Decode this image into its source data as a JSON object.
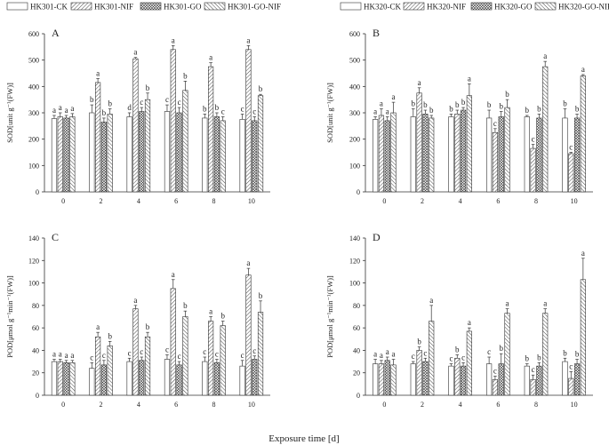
{
  "figure": {
    "shared_xlabel": "Exposure time [d]",
    "legends": [
      {
        "series": [
          "HK301-CK",
          "HK301-NIF",
          "HK301-GO",
          "HK301-GO-NIF"
        ]
      },
      {
        "series": [
          "HK320-CK",
          "HK320-NIF",
          "HK320-GO",
          "HK320-GO-NIF"
        ]
      }
    ]
  },
  "chart_data": [
    {
      "type": "bar",
      "panel_label": "A",
      "title": "",
      "xlabel": "",
      "ylabel": "SOD[unit g⁻¹(FW)]",
      "ylim": [
        0,
        600
      ],
      "yticks": [
        0,
        100,
        200,
        300,
        400,
        500,
        600
      ],
      "categories": [
        "0",
        "2",
        "4",
        "6",
        "8",
        "10"
      ],
      "series": [
        {
          "name": "HK301-CK",
          "values": [
            278,
            300,
            285,
            305,
            280,
            275
          ],
          "errors": [
            12,
            30,
            15,
            25,
            15,
            20
          ],
          "letters": [
            "a",
            "b",
            "d",
            "c",
            "b",
            "c"
          ]
        },
        {
          "name": "HK301-NIF",
          "values": [
            285,
            415,
            505,
            540,
            475,
            540
          ],
          "errors": [
            15,
            15,
            5,
            15,
            15,
            15
          ],
          "letters": [
            "a",
            "a",
            "a",
            "a",
            "a",
            "a"
          ]
        },
        {
          "name": "HK301-GO",
          "values": [
            280,
            265,
            305,
            300,
            285,
            270
          ],
          "errors": [
            10,
            15,
            15,
            20,
            15,
            15
          ],
          "letters": [
            "a",
            "b",
            "c",
            "c",
            "b",
            "c"
          ]
        },
        {
          "name": "HK301-GO-NIF",
          "values": [
            285,
            295,
            350,
            385,
            270,
            365
          ],
          "errors": [
            12,
            20,
            25,
            35,
            15,
            5
          ],
          "letters": [
            "a",
            "b",
            "b",
            "b",
            "c",
            "b"
          ]
        }
      ]
    },
    {
      "type": "bar",
      "panel_label": "B",
      "title": "",
      "xlabel": "",
      "ylabel": "SOD[unit g⁻¹(FW)]",
      "ylim": [
        0,
        600
      ],
      "yticks": [
        0,
        100,
        200,
        300,
        400,
        500,
        600
      ],
      "categories": [
        "0",
        "2",
        "4",
        "6",
        "8",
        "10"
      ],
      "series": [
        {
          "name": "HK320-CK",
          "values": [
            275,
            285,
            285,
            280,
            285,
            280
          ],
          "errors": [
            10,
            30,
            10,
            30,
            5,
            35
          ],
          "letters": [
            "a",
            "b",
            "b",
            "b",
            "b",
            "b"
          ]
        },
        {
          "name": "HK320-NIF",
          "values": [
            290,
            375,
            295,
            225,
            165,
            145
          ],
          "errors": [
            25,
            20,
            15,
            15,
            15,
            5
          ],
          "letters": [
            "a",
            "a",
            "b",
            "c",
            "c",
            "c"
          ]
        },
        {
          "name": "HK320-GO",
          "values": [
            270,
            295,
            310,
            285,
            280,
            280
          ],
          "errors": [
            15,
            15,
            10,
            20,
            15,
            15
          ],
          "letters": [
            "a",
            "b",
            "b",
            "b",
            "b",
            "b"
          ]
        },
        {
          "name": "HK320-GO-NIF",
          "values": [
            300,
            280,
            365,
            320,
            475,
            440
          ],
          "errors": [
            40,
            10,
            45,
            30,
            20,
            5
          ],
          "letters": [
            "a",
            "b",
            "a",
            "b",
            "a",
            "a"
          ]
        }
      ]
    },
    {
      "type": "bar",
      "panel_label": "C",
      "title": "",
      "xlabel": "",
      "ylabel": "POD[μmol g⁻¹min⁻¹(FW)]",
      "ylim": [
        0,
        140
      ],
      "yticks": [
        0,
        20,
        40,
        60,
        80,
        100,
        120,
        140
      ],
      "categories": [
        "0",
        "2",
        "4",
        "6",
        "8",
        "10"
      ],
      "series": [
        {
          "name": "HK301-CK",
          "values": [
            30,
            24,
            30,
            32,
            30,
            26
          ],
          "errors": [
            2,
            5,
            3,
            4,
            4,
            5
          ],
          "letters": [
            "a",
            "c",
            "c",
            "c",
            "c",
            "c"
          ]
        },
        {
          "name": "HK301-NIF",
          "values": [
            30,
            52,
            77,
            95,
            66,
            107
          ],
          "errors": [
            2,
            4,
            3,
            8,
            4,
            6
          ],
          "letters": [
            "a",
            "a",
            "a",
            "a",
            "a",
            "a"
          ]
        },
        {
          "name": "HK301-GO",
          "values": [
            29,
            27,
            31,
            27,
            29,
            32
          ],
          "errors": [
            2,
            4,
            3,
            3,
            3,
            3
          ],
          "letters": [
            "a",
            "c",
            "c",
            "c",
            "c",
            "c"
          ]
        },
        {
          "name": "HK301-GO-NIF",
          "values": [
            29,
            44,
            52,
            70,
            62,
            74
          ],
          "errors": [
            2,
            4,
            4,
            5,
            4,
            10
          ],
          "letters": [
            "a",
            "b",
            "b",
            "b",
            "b",
            "b"
          ]
        }
      ]
    },
    {
      "type": "bar",
      "panel_label": "D",
      "title": "",
      "xlabel": "",
      "ylabel": "POD[μmol g⁻¹min⁻¹(FW)]",
      "ylim": [
        0,
        140
      ],
      "yticks": [
        0,
        20,
        40,
        60,
        80,
        100,
        120,
        140
      ],
      "categories": [
        "0",
        "2",
        "4",
        "6",
        "8",
        "10"
      ],
      "series": [
        {
          "name": "HK320-CK",
          "values": [
            28,
            28,
            26,
            28,
            26,
            30
          ],
          "errors": [
            4,
            2,
            2,
            6,
            2,
            3
          ],
          "letters": [
            "a",
            "c",
            "c",
            "c",
            "b",
            "b"
          ]
        },
        {
          "name": "HK320-NIF",
          "values": [
            28,
            40,
            33,
            14,
            14,
            15
          ],
          "errors": [
            3,
            3,
            3,
            3,
            4,
            6
          ],
          "letters": [
            "a",
            "b",
            "b",
            "c",
            "c",
            "c"
          ]
        },
        {
          "name": "HK320-GO",
          "values": [
            31,
            30,
            26,
            28,
            26,
            28
          ],
          "errors": [
            3,
            3,
            3,
            9,
            3,
            4
          ],
          "letters": [
            "a",
            "c",
            "c",
            "b",
            "b",
            "b"
          ]
        },
        {
          "name": "HK320-GO-NIF",
          "values": [
            27,
            66,
            57,
            73,
            73,
            103
          ],
          "errors": [
            5,
            14,
            3,
            4,
            4,
            19
          ],
          "letters": [
            "a",
            "a",
            "a",
            "a",
            "a",
            "a"
          ]
        }
      ]
    }
  ]
}
